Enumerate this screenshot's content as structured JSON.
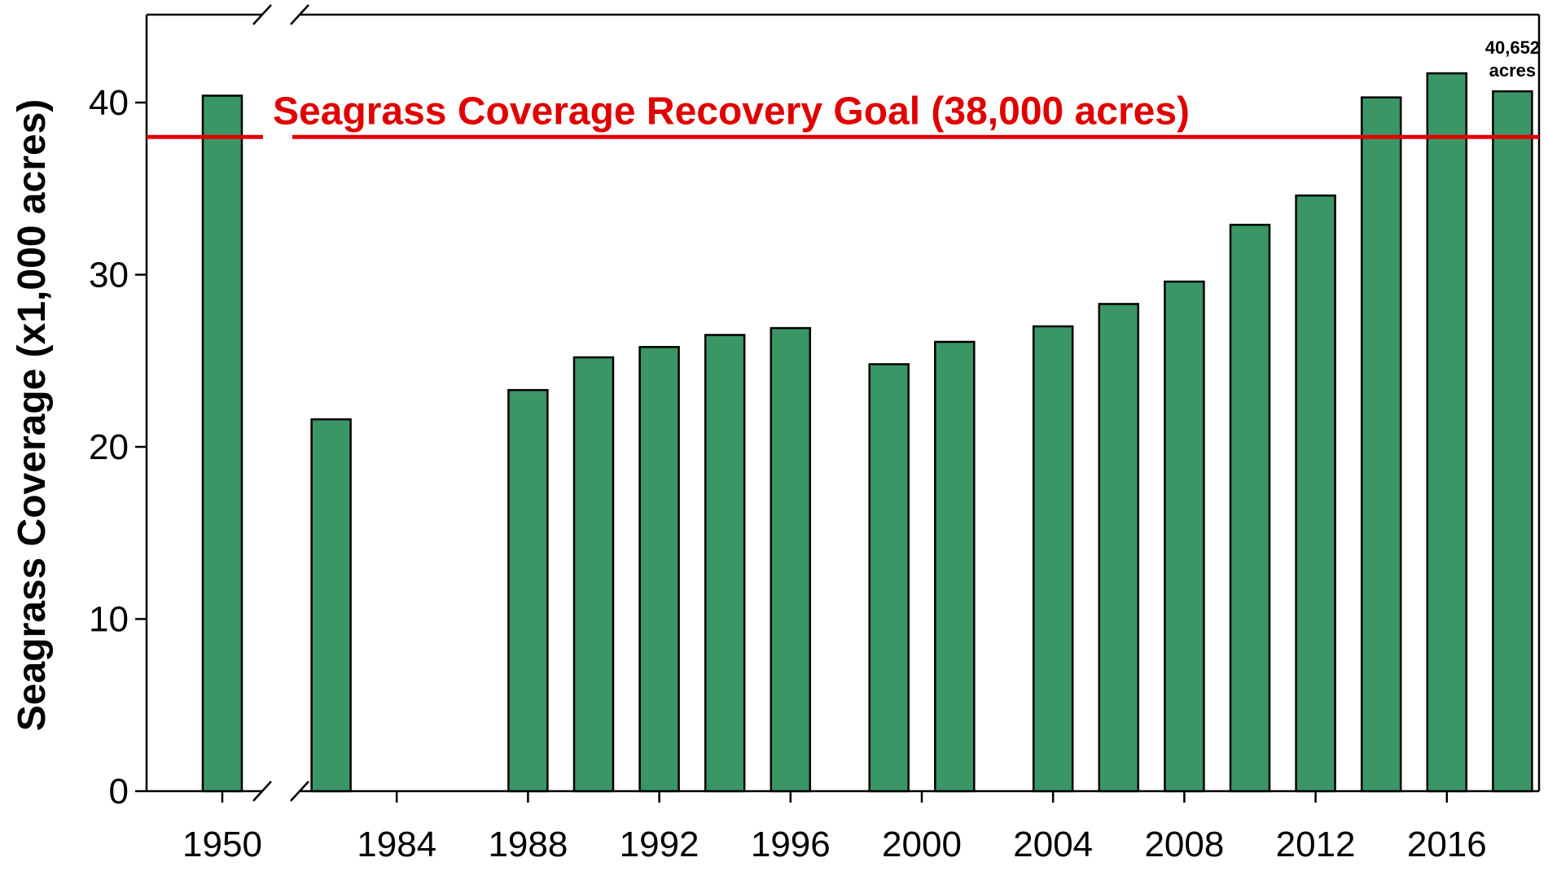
{
  "chart_data": {
    "type": "bar",
    "title": "",
    "xlabel": "",
    "ylabel": "Seagrass Coverage (x1,000 acres)",
    "ylim": [
      0,
      45
    ],
    "yticks": [
      0,
      10,
      20,
      30,
      40
    ],
    "axis_break": "between 1950 and 1982",
    "bar_color": "#3a9665",
    "goal_line": {
      "value": 38,
      "label": "Seagrass Coverage Recovery Goal (38,000 acres)",
      "color": "#e00000"
    },
    "x_tick_labels": [
      "1950",
      "1984",
      "1988",
      "1992",
      "1996",
      "2000",
      "2004",
      "2008",
      "2012",
      "2016"
    ],
    "categories": [
      "1950",
      "1982",
      "1988",
      "1990",
      "1992",
      "1994",
      "1996",
      "1999",
      "2001",
      "2004",
      "2006",
      "2008",
      "2010",
      "2012",
      "2014",
      "2016",
      "2018"
    ],
    "values": [
      40.4,
      21.6,
      23.3,
      25.2,
      25.8,
      26.5,
      26.9,
      24.8,
      26.1,
      27.0,
      28.3,
      29.6,
      32.9,
      34.6,
      40.3,
      41.7,
      40.652
    ],
    "annotation": {
      "target": "2018",
      "line1": "40,652",
      "line2": "acres"
    }
  }
}
